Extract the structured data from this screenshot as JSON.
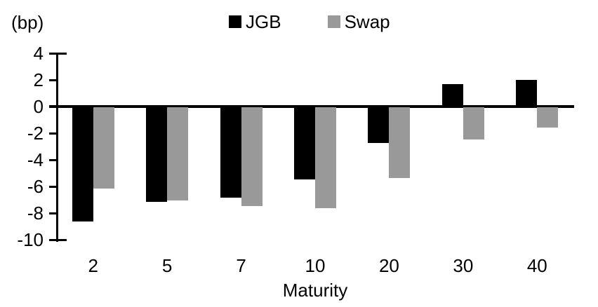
{
  "chart_data": {
    "type": "bar",
    "title": "",
    "unit_label": "(bp)",
    "xlabel": "Maturity",
    "categories": [
      "2",
      "5",
      "7",
      "10",
      "20",
      "30",
      "40"
    ],
    "series": [
      {
        "name": "JGB",
        "color": "#000000",
        "values": [
          -8.6,
          -7.1,
          -6.8,
          -5.4,
          -2.7,
          1.7,
          2.0
        ]
      },
      {
        "name": "Swap",
        "color": "#999999",
        "values": [
          -6.1,
          -7.0,
          -7.4,
          -7.6,
          -5.3,
          -2.4,
          -1.5
        ]
      }
    ],
    "ylim": [
      -10,
      4
    ],
    "ytick_step": 2,
    "yticks": [
      "4",
      "2",
      "0",
      "-2",
      "-4",
      "-6",
      "-8",
      "-10"
    ],
    "legend_position": "top-center",
    "grid": false,
    "axis_color": "#000000",
    "background_color": "#ffffff"
  }
}
